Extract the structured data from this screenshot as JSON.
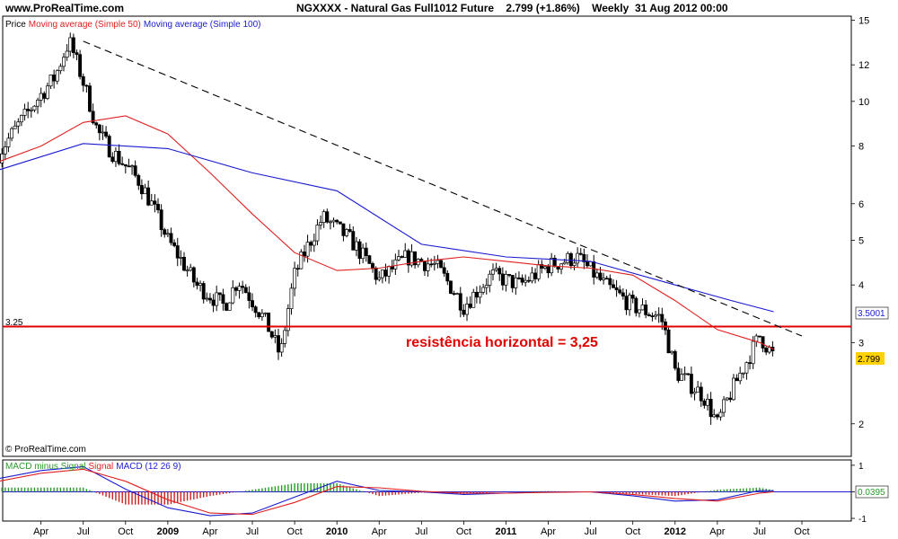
{
  "header": {
    "site": "www.ProRealTime.com",
    "instrument": "NGXXXX - Natural Gas Full1012 Future",
    "last": "2.799 (+1.86%)",
    "period": "Weekly",
    "date": "31 Aug 2012 00:00"
  },
  "legend": {
    "price": "Price",
    "ma50": "Moving average (Simple 50)",
    "ma100": "Moving average (Simple 100)",
    "macd_hist": "MACD minus Signal",
    "macd_signal": "Signal",
    "macd": "MACD (12 26 9)"
  },
  "annotation": "resistência horizontal = 3,25",
  "copyright": "© ProRealTime.com",
  "tags": {
    "resistance_left": "3.25",
    "ma100_last": "3.5001",
    "price_last": "2.799",
    "macd_last": "0.0395"
  },
  "colors": {
    "ma50": "#e02020",
    "ma100": "#1a1ad0",
    "resistance": "#e00000",
    "trendline": "#000000",
    "candle_up": "#ffffff",
    "candle_down": "#000000",
    "hist_pos": "#2a9a2a",
    "hist_neg": "#cc2020",
    "price_tag": "#ffd200"
  },
  "chart_data": [
    {
      "type": "candlestick",
      "title": "NGXXXX - Natural Gas Full1012 Future",
      "y_scale": "log",
      "ylim": [
        1.7,
        15.3
      ],
      "y_ticks": [
        "15",
        "12",
        "10",
        "8",
        "6",
        "5",
        "4",
        "3",
        "2"
      ],
      "x_ticks": [
        "Apr",
        "Jul",
        "Oct",
        "2009",
        "Apr",
        "Jul",
        "Oct",
        "2010",
        "Apr",
        "Jul",
        "Oct",
        "2011",
        "Apr",
        "Jul",
        "Oct",
        "2012",
        "Apr",
        "Jul",
        "Oct"
      ],
      "x_range": [
        "2008-01",
        "2012-10"
      ],
      "close_approx": [
        [
          "2008-01",
          7.7
        ],
        [
          "2008-03",
          9.4
        ],
        [
          "2008-05",
          11.3
        ],
        [
          "2008-06",
          13.5
        ],
        [
          "2008-07",
          11.0
        ],
        [
          "2008-08",
          8.6
        ],
        [
          "2008-09",
          7.8
        ],
        [
          "2008-11",
          6.7
        ],
        [
          "2009-01",
          5.0
        ],
        [
          "2009-03",
          4.0
        ],
        [
          "2009-05",
          3.6
        ],
        [
          "2009-06",
          4.1
        ],
        [
          "2009-08",
          3.3
        ],
        [
          "2009-09",
          2.8
        ],
        [
          "2009-10",
          4.2
        ],
        [
          "2009-12",
          5.6
        ],
        [
          "2010-02",
          5.0
        ],
        [
          "2010-04",
          4.1
        ],
        [
          "2010-06",
          4.6
        ],
        [
          "2010-08",
          4.4
        ],
        [
          "2010-10",
          3.6
        ],
        [
          "2010-12",
          4.2
        ],
        [
          "2011-02",
          4.0
        ],
        [
          "2011-04",
          4.4
        ],
        [
          "2011-06",
          4.6
        ],
        [
          "2011-08",
          4.0
        ],
        [
          "2011-10",
          3.6
        ],
        [
          "2011-12",
          3.4
        ],
        [
          "2012-01",
          2.6
        ],
        [
          "2012-03",
          2.3
        ],
        [
          "2012-04",
          2.0
        ],
        [
          "2012-06",
          2.7
        ],
        [
          "2012-07",
          3.1
        ],
        [
          "2012-08",
          2.8
        ]
      ],
      "series": [
        {
          "name": "Moving average (Simple 50)",
          "points": [
            [
              "2008-01",
              7.4
            ],
            [
              "2008-04",
              8.0
            ],
            [
              "2008-07",
              9.0
            ],
            [
              "2008-10",
              9.3
            ],
            [
              "2009-01",
              8.5
            ],
            [
              "2009-04",
              7.0
            ],
            [
              "2009-07",
              5.7
            ],
            [
              "2009-10",
              4.7
            ],
            [
              "2010-01",
              4.3
            ],
            [
              "2010-04",
              4.35
            ],
            [
              "2010-07",
              4.5
            ],
            [
              "2010-10",
              4.6
            ],
            [
              "2011-01",
              4.5
            ],
            [
              "2011-04",
              4.4
            ],
            [
              "2011-07",
              4.35
            ],
            [
              "2011-10",
              4.2
            ],
            [
              "2012-01",
              3.7
            ],
            [
              "2012-04",
              3.2
            ],
            [
              "2012-07",
              3.0
            ],
            [
              "2012-08",
              2.9
            ]
          ]
        },
        {
          "name": "Moving average (Simple 100)",
          "points": [
            [
              "2008-01",
              7.1
            ],
            [
              "2008-07",
              8.1
            ],
            [
              "2009-01",
              7.9
            ],
            [
              "2009-07",
              7.0
            ],
            [
              "2010-01",
              6.4
            ],
            [
              "2010-07",
              4.9
            ],
            [
              "2011-01",
              4.6
            ],
            [
              "2011-07",
              4.5
            ],
            [
              "2012-01",
              4.0
            ],
            [
              "2012-05",
              3.7
            ],
            [
              "2012-08",
              3.5
            ]
          ]
        }
      ],
      "horizontal_line": 3.25,
      "trendline": [
        [
          "2008-07",
          13.5
        ],
        [
          "2012-10",
          3.1
        ]
      ]
    },
    {
      "type": "bar",
      "title": "MACD (12 26 9)",
      "ylim": [
        -1.1,
        1.2
      ],
      "y_ticks": [
        "1",
        "0",
        "-1"
      ],
      "series": [
        {
          "name": "MACD (12 26 9)",
          "points": [
            [
              "2008-01",
              0.5
            ],
            [
              "2008-04",
              0.8
            ],
            [
              "2008-07",
              0.95
            ],
            [
              "2008-10",
              0.1
            ],
            [
              "2009-01",
              -0.6
            ],
            [
              "2009-04",
              -0.9
            ],
            [
              "2009-07",
              -0.8
            ],
            [
              "2009-10",
              -0.2
            ],
            [
              "2010-01",
              0.4
            ],
            [
              "2010-04",
              0.05
            ],
            [
              "2010-07",
              0.0
            ],
            [
              "2010-10",
              -0.1
            ],
            [
              "2011-01",
              -0.05
            ],
            [
              "2011-04",
              0.0
            ],
            [
              "2011-07",
              0.0
            ],
            [
              "2011-10",
              -0.15
            ],
            [
              "2012-01",
              -0.35
            ],
            [
              "2012-04",
              -0.3
            ],
            [
              "2012-07",
              0.05
            ],
            [
              "2012-08",
              0.0395
            ]
          ]
        },
        {
          "name": "Signal",
          "points": [
            [
              "2008-01",
              0.4
            ],
            [
              "2008-04",
              0.7
            ],
            [
              "2008-07",
              0.85
            ],
            [
              "2008-10",
              0.4
            ],
            [
              "2009-01",
              -0.3
            ],
            [
              "2009-04",
              -0.8
            ],
            [
              "2009-07",
              -0.85
            ],
            [
              "2009-10",
              -0.4
            ],
            [
              "2010-01",
              0.2
            ],
            [
              "2010-04",
              0.15
            ],
            [
              "2010-07",
              0.02
            ],
            [
              "2010-10",
              -0.05
            ],
            [
              "2011-01",
              -0.05
            ],
            [
              "2011-04",
              -0.02
            ],
            [
              "2011-07",
              0.0
            ],
            [
              "2011-10",
              -0.1
            ],
            [
              "2012-01",
              -0.25
            ],
            [
              "2012-04",
              -0.35
            ],
            [
              "2012-07",
              -0.05
            ],
            [
              "2012-08",
              0.0
            ]
          ]
        }
      ]
    }
  ]
}
